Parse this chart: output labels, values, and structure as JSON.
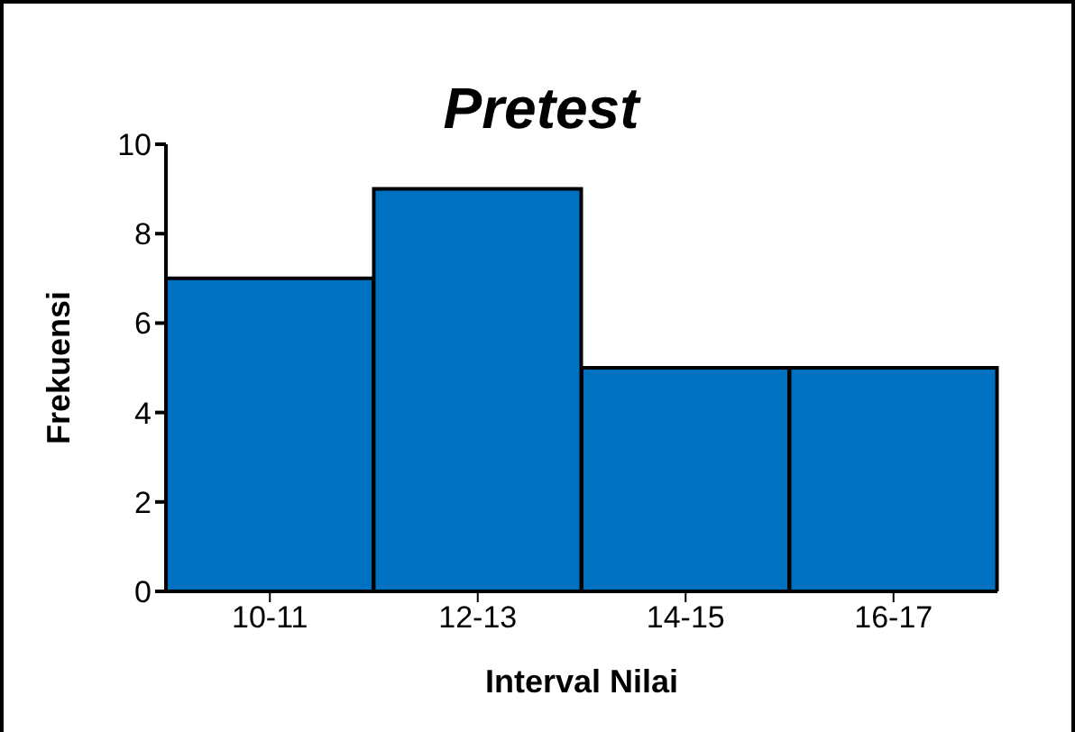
{
  "chart_data": {
    "type": "bar",
    "title": "Pretest",
    "xlabel": "Interval Nilai",
    "ylabel": "Frekuensi",
    "categories": [
      "10-11",
      "12-13",
      "14-15",
      "16-17"
    ],
    "values": [
      7,
      9,
      5,
      5
    ],
    "color": "#0070c0",
    "ylim": [
      0,
      10
    ],
    "yticks": [
      0,
      2,
      4,
      6,
      8,
      10
    ],
    "grid": false,
    "legend": false
  }
}
